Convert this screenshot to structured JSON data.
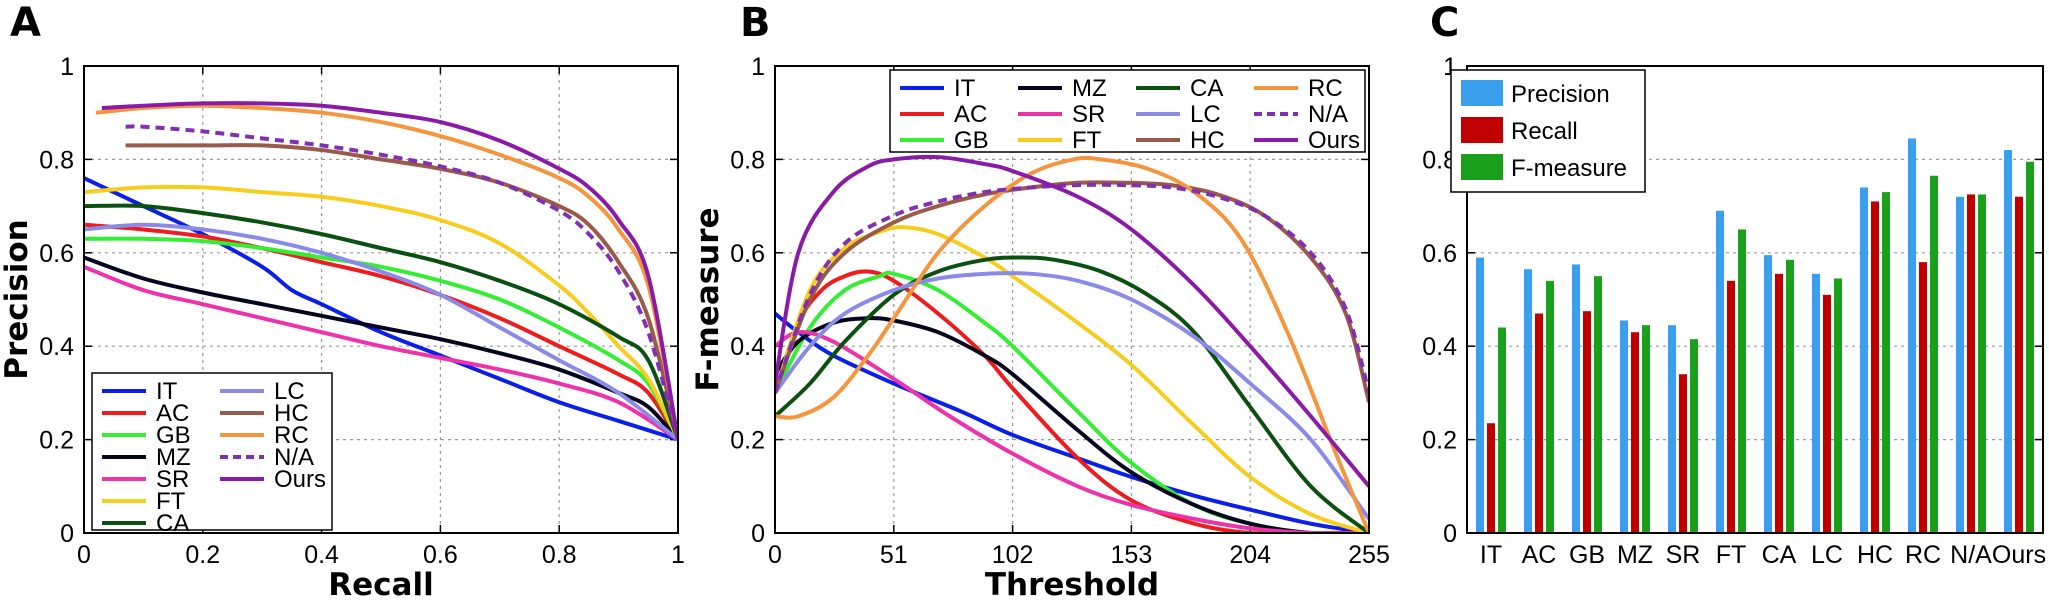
{
  "panels": [
    {
      "letter": "A"
    },
    {
      "letter": "B"
    },
    {
      "letter": "C"
    }
  ],
  "colors": {
    "IT": "#0a1fe8",
    "AC": "#ee1c1c",
    "GB": "#33ee33",
    "MZ": "#050520",
    "SR": "#ee33aa",
    "FT": "#f7cd1d",
    "CA": "#0b5010",
    "LC": "#8a8ae8",
    "HC": "#9a5a4a",
    "RC": "#f5953e",
    "N/A": "#8030b0",
    "Ours": "#8a1aa8",
    "Precision": "#3aa0ee",
    "Recall": "#c00000",
    "F-measure": "#1aa01a"
  },
  "chart_data": [
    {
      "type": "line",
      "panel": "A",
      "title": "",
      "xlabel": "Recall",
      "ylabel": "Precision",
      "xlim": [
        0,
        1
      ],
      "ylim": [
        0,
        1
      ],
      "xticks": [
        "0",
        "0.2",
        "0.4",
        "0.6",
        "0.8",
        "1"
      ],
      "yticks": [
        "0",
        "0.2",
        "0.4",
        "0.6",
        "0.8",
        "1"
      ],
      "grid": true,
      "legend_position": "bottom-left",
      "series": [
        {
          "name": "IT",
          "x": [
            0,
            0.05,
            0.1,
            0.2,
            0.3,
            0.35,
            0.4,
            0.5,
            0.6,
            0.7,
            0.8,
            0.9,
            1.0
          ],
          "y": [
            0.76,
            0.73,
            0.7,
            0.64,
            0.57,
            0.52,
            0.49,
            0.43,
            0.38,
            0.33,
            0.28,
            0.24,
            0.2
          ]
        },
        {
          "name": "AC",
          "x": [
            0,
            0.1,
            0.2,
            0.3,
            0.4,
            0.5,
            0.6,
            0.7,
            0.8,
            0.9,
            0.95,
            1.0
          ],
          "y": [
            0.66,
            0.65,
            0.635,
            0.61,
            0.58,
            0.55,
            0.51,
            0.46,
            0.4,
            0.34,
            0.3,
            0.2
          ]
        },
        {
          "name": "GB",
          "x": [
            0,
            0.1,
            0.2,
            0.3,
            0.4,
            0.5,
            0.6,
            0.7,
            0.8,
            0.9,
            0.95,
            1.0
          ],
          "y": [
            0.63,
            0.63,
            0.625,
            0.61,
            0.59,
            0.57,
            0.54,
            0.5,
            0.44,
            0.37,
            0.32,
            0.2
          ]
        },
        {
          "name": "MZ",
          "x": [
            0,
            0.1,
            0.2,
            0.3,
            0.4,
            0.5,
            0.6,
            0.7,
            0.8,
            0.9,
            0.95,
            1.0
          ],
          "y": [
            0.59,
            0.545,
            0.515,
            0.49,
            0.465,
            0.44,
            0.415,
            0.385,
            0.35,
            0.3,
            0.27,
            0.2
          ]
        },
        {
          "name": "SR",
          "x": [
            0,
            0.1,
            0.2,
            0.3,
            0.4,
            0.5,
            0.6,
            0.7,
            0.8,
            0.9,
            1.0
          ],
          "y": [
            0.57,
            0.52,
            0.49,
            0.46,
            0.43,
            0.4,
            0.375,
            0.35,
            0.32,
            0.28,
            0.2
          ]
        },
        {
          "name": "FT",
          "x": [
            0,
            0.1,
            0.2,
            0.3,
            0.4,
            0.5,
            0.6,
            0.7,
            0.8,
            0.85,
            0.9,
            0.95,
            1.0
          ],
          "y": [
            0.73,
            0.74,
            0.74,
            0.73,
            0.72,
            0.7,
            0.67,
            0.62,
            0.53,
            0.47,
            0.4,
            0.33,
            0.2
          ]
        },
        {
          "name": "CA",
          "x": [
            0,
            0.1,
            0.2,
            0.3,
            0.4,
            0.5,
            0.6,
            0.7,
            0.8,
            0.9,
            0.95,
            1.0
          ],
          "y": [
            0.7,
            0.7,
            0.685,
            0.665,
            0.64,
            0.61,
            0.58,
            0.54,
            0.49,
            0.42,
            0.37,
            0.2
          ]
        },
        {
          "name": "LC",
          "x": [
            0,
            0.1,
            0.2,
            0.3,
            0.4,
            0.5,
            0.6,
            0.7,
            0.8,
            0.9,
            1.0
          ],
          "y": [
            0.65,
            0.66,
            0.65,
            0.63,
            0.6,
            0.56,
            0.51,
            0.44,
            0.37,
            0.3,
            0.2
          ]
        },
        {
          "name": "HC",
          "x": [
            0.07,
            0.2,
            0.3,
            0.4,
            0.5,
            0.6,
            0.7,
            0.8,
            0.85,
            0.9,
            0.95,
            1.0
          ],
          "y": [
            0.83,
            0.83,
            0.83,
            0.82,
            0.8,
            0.78,
            0.75,
            0.7,
            0.66,
            0.58,
            0.46,
            0.2
          ]
        },
        {
          "name": "RC",
          "x": [
            0.02,
            0.1,
            0.2,
            0.3,
            0.4,
            0.5,
            0.6,
            0.7,
            0.8,
            0.85,
            0.9,
            0.95,
            1.0
          ],
          "y": [
            0.9,
            0.91,
            0.915,
            0.91,
            0.9,
            0.88,
            0.85,
            0.81,
            0.76,
            0.72,
            0.65,
            0.53,
            0.2
          ]
        },
        {
          "name": "N/A",
          "x": [
            0.07,
            0.1,
            0.2,
            0.3,
            0.4,
            0.5,
            0.6,
            0.7,
            0.8,
            0.85,
            0.9,
            0.95,
            1.0
          ],
          "y": [
            0.87,
            0.87,
            0.86,
            0.845,
            0.83,
            0.81,
            0.785,
            0.75,
            0.69,
            0.64,
            0.56,
            0.43,
            0.2
          ],
          "dashed": true
        },
        {
          "name": "Ours",
          "x": [
            0.03,
            0.1,
            0.2,
            0.3,
            0.4,
            0.5,
            0.6,
            0.7,
            0.8,
            0.85,
            0.9,
            0.95,
            1.0
          ],
          "y": [
            0.91,
            0.915,
            0.92,
            0.92,
            0.915,
            0.9,
            0.88,
            0.84,
            0.78,
            0.74,
            0.67,
            0.55,
            0.2
          ]
        }
      ]
    },
    {
      "type": "line",
      "panel": "B",
      "title": "",
      "xlabel": "Threshold",
      "ylabel": "F-measure",
      "xlim": [
        0,
        255
      ],
      "ylim": [
        0,
        1
      ],
      "xticks": [
        "0",
        "51",
        "102",
        "153",
        "204",
        "255"
      ],
      "yticks": [
        "0",
        "0.2",
        "0.4",
        "0.6",
        "0.8",
        "1"
      ],
      "grid": true,
      "legend_position": "top-right",
      "series": [
        {
          "name": "IT",
          "x": [
            0,
            10,
            25,
            51,
            80,
            102,
            130,
            153,
            180,
            204,
            230,
            255
          ],
          "y": [
            0.47,
            0.43,
            0.38,
            0.32,
            0.26,
            0.21,
            0.16,
            0.12,
            0.08,
            0.05,
            0.02,
            0.0
          ]
        },
        {
          "name": "AC",
          "x": [
            0,
            10,
            20,
            30,
            40,
            51,
            70,
            90,
            102,
            130,
            153,
            180,
            204,
            230,
            255
          ],
          "y": [
            0.3,
            0.45,
            0.52,
            0.55,
            0.56,
            0.54,
            0.47,
            0.38,
            0.31,
            0.16,
            0.07,
            0.02,
            0.0,
            0.0,
            0.0
          ]
        },
        {
          "name": "GB",
          "x": [
            0,
            15,
            30,
            45,
            51,
            70,
            90,
            102,
            130,
            153,
            180,
            204,
            230,
            255
          ],
          "y": [
            0.3,
            0.44,
            0.52,
            0.55,
            0.555,
            0.52,
            0.45,
            0.4,
            0.26,
            0.15,
            0.06,
            0.02,
            0.0,
            0.0
          ]
        },
        {
          "name": "MZ",
          "x": [
            0,
            10,
            25,
            40,
            51,
            70,
            90,
            102,
            130,
            153,
            180,
            204,
            230,
            255
          ],
          "y": [
            0.34,
            0.41,
            0.45,
            0.46,
            0.455,
            0.43,
            0.38,
            0.34,
            0.22,
            0.13,
            0.06,
            0.02,
            0.0,
            0.0
          ]
        },
        {
          "name": "SR",
          "x": [
            0,
            10,
            25,
            51,
            75,
            102,
            130,
            153,
            180,
            204,
            230,
            255
          ],
          "y": [
            0.4,
            0.43,
            0.41,
            0.33,
            0.25,
            0.17,
            0.1,
            0.06,
            0.03,
            0.01,
            0.0,
            0.0
          ]
        },
        {
          "name": "FT",
          "x": [
            0,
            15,
            30,
            45,
            55,
            70,
            90,
            102,
            130,
            153,
            180,
            204,
            230,
            255
          ],
          "y": [
            0.3,
            0.52,
            0.61,
            0.645,
            0.655,
            0.64,
            0.59,
            0.55,
            0.45,
            0.36,
            0.23,
            0.12,
            0.04,
            0.0
          ]
        },
        {
          "name": "CA",
          "x": [
            0,
            15,
            30,
            51,
            70,
            90,
            105,
            120,
            140,
            160,
            180,
            204,
            230,
            255
          ],
          "y": [
            0.25,
            0.32,
            0.41,
            0.51,
            0.56,
            0.585,
            0.59,
            0.585,
            0.56,
            0.51,
            0.43,
            0.27,
            0.1,
            0.0
          ]
        },
        {
          "name": "LC",
          "x": [
            0,
            15,
            30,
            51,
            70,
            90,
            110,
            130,
            153,
            180,
            204,
            230,
            255
          ],
          "y": [
            0.3,
            0.4,
            0.47,
            0.52,
            0.545,
            0.555,
            0.555,
            0.54,
            0.5,
            0.42,
            0.32,
            0.2,
            0.03
          ]
        },
        {
          "name": "HC",
          "x": [
            0,
            15,
            30,
            51,
            70,
            90,
            110,
            130,
            150,
            170,
            190,
            210,
            230,
            245,
            255
          ],
          "y": [
            0.3,
            0.5,
            0.6,
            0.665,
            0.7,
            0.725,
            0.74,
            0.75,
            0.75,
            0.745,
            0.725,
            0.68,
            0.59,
            0.47,
            0.28
          ]
        },
        {
          "name": "RC",
          "x": [
            0,
            10,
            25,
            40,
            51,
            70,
            90,
            110,
            128,
            140,
            160,
            180,
            200,
            220,
            240,
            255
          ],
          "y": [
            0.25,
            0.25,
            0.29,
            0.38,
            0.46,
            0.6,
            0.7,
            0.77,
            0.8,
            0.8,
            0.78,
            0.73,
            0.63,
            0.43,
            0.18,
            0.0
          ]
        },
        {
          "name": "N/A",
          "x": [
            0,
            15,
            30,
            51,
            70,
            90,
            110,
            130,
            150,
            170,
            190,
            210,
            230,
            245,
            255
          ],
          "y": [
            0.3,
            0.51,
            0.62,
            0.68,
            0.71,
            0.73,
            0.74,
            0.745,
            0.745,
            0.74,
            0.72,
            0.68,
            0.6,
            0.48,
            0.3
          ],
          "dashed": true
        },
        {
          "name": "Ours",
          "x": [
            0,
            10,
            25,
            40,
            51,
            70,
            90,
            102,
            130,
            153,
            180,
            204,
            230,
            255
          ],
          "y": [
            0.32,
            0.6,
            0.73,
            0.785,
            0.8,
            0.805,
            0.79,
            0.775,
            0.72,
            0.65,
            0.53,
            0.4,
            0.25,
            0.1
          ]
        }
      ]
    },
    {
      "type": "bar",
      "panel": "C",
      "title": "",
      "xlabel": "",
      "ylabel": "",
      "ylim": [
        0,
        1
      ],
      "yticks": [
        "0",
        "0.2",
        "0.4",
        "0.6",
        "0.8",
        "1"
      ],
      "grid": true,
      "legend_position": "top-left",
      "categories": [
        "IT",
        "AC",
        "GB",
        "MZ",
        "SR",
        "FT",
        "CA",
        "LC",
        "HC",
        "RC",
        "N/A",
        "Ours"
      ],
      "series": [
        {
          "name": "Precision",
          "values": [
            0.59,
            0.565,
            0.575,
            0.455,
            0.445,
            0.69,
            0.595,
            0.555,
            0.74,
            0.845,
            0.72,
            0.82
          ]
        },
        {
          "name": "Recall",
          "values": [
            0.235,
            0.47,
            0.475,
            0.43,
            0.34,
            0.54,
            0.555,
            0.51,
            0.71,
            0.58,
            0.725,
            0.72
          ]
        },
        {
          "name": "F-measure",
          "values": [
            0.44,
            0.54,
            0.55,
            0.445,
            0.415,
            0.65,
            0.585,
            0.545,
            0.73,
            0.765,
            0.725,
            0.795
          ]
        }
      ]
    }
  ]
}
